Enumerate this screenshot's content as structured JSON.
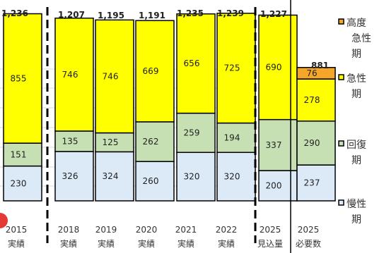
{
  "chart_data": {
    "type": "bar",
    "stacked": true,
    "categories": [
      [
        "2015",
        "実績"
      ],
      [
        "2018",
        "実績"
      ],
      [
        "2019",
        "実績"
      ],
      [
        "2020",
        "実績"
      ],
      [
        "2021",
        "実績"
      ],
      [
        "2022",
        "実績"
      ],
      [
        "2025",
        "見込量"
      ],
      [
        "2025",
        "必要数"
      ]
    ],
    "series": [
      {
        "name": "慢性期",
        "color": "#dce9f7",
        "values": [
          230,
          326,
          324,
          260,
          320,
          320,
          200,
          237
        ]
      },
      {
        "name": "回復期",
        "color": "#c6e0b4",
        "values": [
          151,
          135,
          125,
          262,
          259,
          194,
          337,
          290
        ]
      },
      {
        "name": "急性期",
        "color": "#ffff00",
        "values": [
          855,
          746,
          746,
          669,
          656,
          725,
          690,
          278
        ]
      },
      {
        "name": "高度急性期",
        "color": "#f4a62a",
        "values": [
          null,
          null,
          null,
          null,
          null,
          null,
          null,
          76
        ]
      }
    ],
    "totals": [
      "1,236",
      "1,207",
      "1,195",
      "1,191",
      "1,235",
      "1,239",
      "1,227",
      "881"
    ],
    "ylim": [
      0,
      1300
    ],
    "grid": true,
    "legend_position": "right",
    "legend_entries": [
      [
        "高度",
        "急性",
        "期"
      ],
      [
        "急性",
        "期"
      ],
      [
        "回復",
        "期"
      ],
      [
        "慢性",
        "期"
      ]
    ]
  },
  "colors": {
    "bar_outline": "#000000",
    "grid": "#d9d9d9",
    "separator": "#000000",
    "marker": "#e53935"
  }
}
